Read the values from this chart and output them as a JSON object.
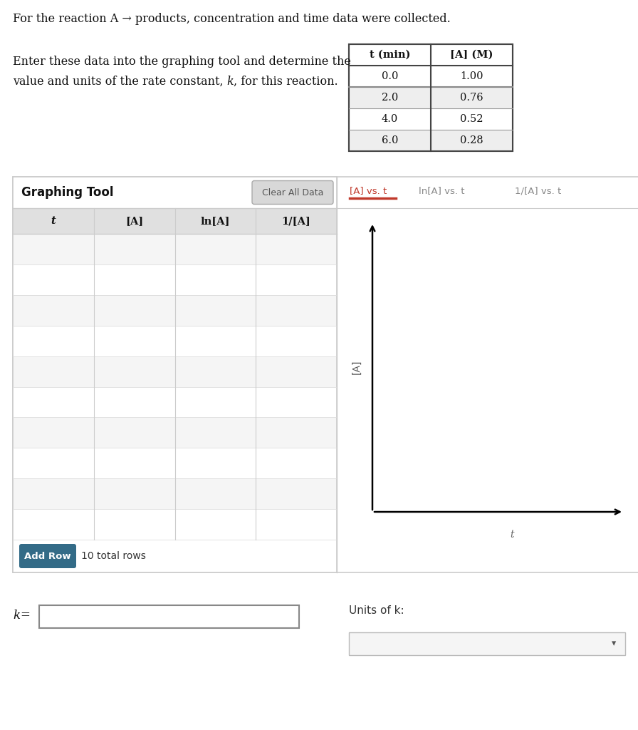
{
  "title_line1": "For the reaction A → products, concentration and time data were collected.",
  "instruction_line1": "Enter these data into the graphing tool and determine the",
  "instruction_line2": "value and units of the rate constant, k, for this reaction.",
  "table_headers": [
    "t (min)",
    "[A] (M)"
  ],
  "table_data": [
    [
      "0.0",
      "1.00"
    ],
    [
      "2.0",
      "0.76"
    ],
    [
      "4.0",
      "0.52"
    ],
    [
      "6.0",
      "0.28"
    ]
  ],
  "graphing_tool_label": "Graphing Tool",
  "clear_button_label": "Clear All Data",
  "col_headers": [
    "t",
    "[A]",
    "ln[A]",
    "1/[A]"
  ],
  "num_rows": 10,
  "add_row_label": "Add Row",
  "total_rows_label": "10 total rows",
  "tab_labels": [
    "[A] vs. t",
    "ln[A] vs. t",
    "1/[A] vs. t"
  ],
  "active_tab": 0,
  "graph_xlabel": "t",
  "graph_ylabel": "[A]",
  "k_label": "k =",
  "units_label": "Units of k:",
  "bg_color": "#ffffff",
  "table_header_bg": "#ffffff",
  "table_alt_row_bg": "#eeeeee",
  "tool_border_color": "#cccccc",
  "active_tab_color": "#c0392b",
  "inactive_tab_color": "#888888",
  "add_row_btn_color": "#336b87",
  "data_table_border": "#444444",
  "col_hdr_bg": "#e0e0e0",
  "row_odd_bg": "#f5f5f5",
  "row_even_bg": "#ffffff"
}
